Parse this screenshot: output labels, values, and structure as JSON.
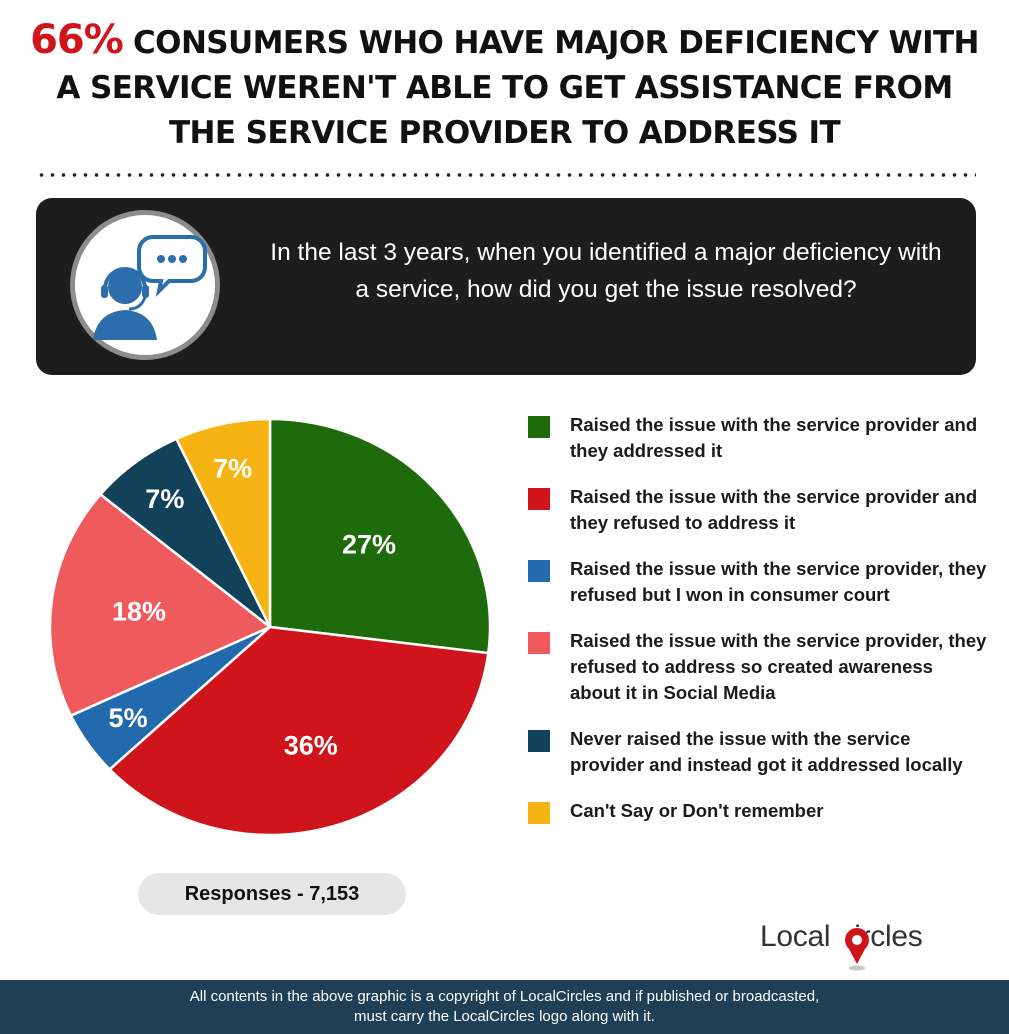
{
  "header": {
    "title_highlight": "66%",
    "title_rest": " CONSUMERS WHO HAVE MAJOR DEFICIENCY WITH A SERVICE WEREN'T ABLE TO GET ASSISTANCE FROM THE SERVICE PROVIDER TO ADDRESS IT",
    "highlight_color": "#d0141b"
  },
  "question": {
    "text": "In the last 3 years, when you identified a major deficiency with a service, how did you get the issue resolved?",
    "icon": "customer-support-headset-icon"
  },
  "chart_data": {
    "type": "pie",
    "title": "In the last 3 years, when you identified a major deficiency with a service, how did you get the issue resolved?",
    "slices": [
      {
        "label": "Raised the issue with the service provider and they addressed it",
        "value": 27,
        "display": "27%",
        "color": "#1e6b0c"
      },
      {
        "label": "Raised the issue with the service provider and they refused to address it",
        "value": 36,
        "display": "36%",
        "color": "#d0141b"
      },
      {
        "label": "Raised the issue with the service provider, they refused but I won in consumer court",
        "value": 5,
        "display": "5%",
        "color": "#2369ad"
      },
      {
        "label": "Raised the issue with the service provider, they refused to address so created awareness about it in Social Media",
        "value": 18,
        "display": "18%",
        "color": "#ef5a5c"
      },
      {
        "label": "Never raised the issue with the service provider and instead got it addressed locally",
        "value": 7,
        "display": "7%",
        "color": "#12415a"
      },
      {
        "label": "Can't Say or Don't remember",
        "value": 7,
        "display": "7%",
        "color": "#f5b414"
      }
    ],
    "legend_position": "right",
    "start_angle_deg": 0,
    "direction": "clockwise"
  },
  "responses": {
    "label": "Responses - 7,153"
  },
  "logo": {
    "text_before": "Local",
    "text_after": "ircles",
    "icon": "map-pin-c-icon",
    "accent": "#d0141b"
  },
  "footer": {
    "line1": "All contents in the above graphic is a copyright of LocalCircles and if published or broadcasted,",
    "line2": "must carry the LocalCircles logo along with it."
  }
}
